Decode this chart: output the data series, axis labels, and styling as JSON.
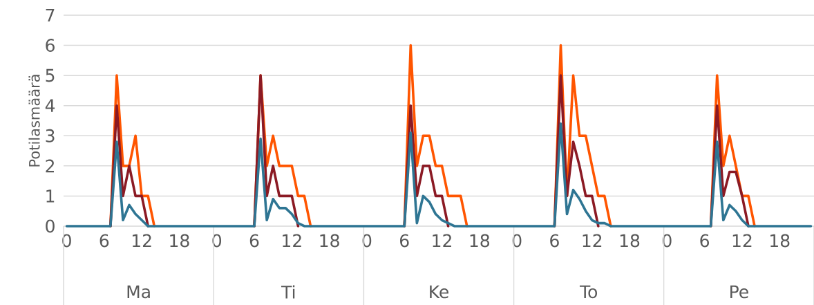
{
  "chart_data": {
    "type": "line",
    "ylabel": "Potilasmäärä",
    "categories": [
      "0",
      null,
      null,
      null,
      null,
      null,
      "6",
      null,
      null,
      null,
      null,
      null,
      "12",
      null,
      null,
      null,
      null,
      null,
      "18",
      null,
      null,
      null,
      null,
      null,
      "0",
      null,
      null,
      null,
      null,
      null,
      "6",
      null,
      null,
      null,
      null,
      null,
      "12",
      null,
      null,
      null,
      null,
      null,
      "18",
      null,
      null,
      null,
      null,
      null,
      "0",
      null,
      null,
      null,
      null,
      null,
      "6",
      null,
      null,
      null,
      null,
      null,
      "12",
      null,
      null,
      null,
      null,
      null,
      "18",
      null,
      null,
      null,
      null,
      null,
      "0",
      null,
      null,
      null,
      null,
      null,
      "6",
      null,
      null,
      null,
      null,
      null,
      "12",
      null,
      null,
      null,
      null,
      null,
      "18",
      null,
      null,
      null,
      null,
      null,
      "0",
      null,
      null,
      null,
      null,
      null,
      "6",
      null,
      null,
      null,
      null,
      null,
      "12",
      null,
      null,
      null,
      null,
      null,
      "18",
      null,
      null,
      null,
      null,
      null
    ],
    "annotations": [
      "Ma",
      "Ti",
      "Ke",
      "To",
      "Pe"
    ],
    "series": [
      {
        "color": "#ff5500",
        "values": [
          null,
          null,
          null,
          null,
          null,
          null,
          null,
          0,
          5,
          2,
          2,
          3,
          1,
          1,
          0,
          null,
          null,
          null,
          null,
          null,
          null,
          null,
          null,
          null,
          null,
          null,
          null,
          null,
          null,
          null,
          0,
          5,
          2,
          3,
          2,
          2,
          2,
          1,
          1,
          0,
          null,
          null,
          null,
          null,
          null,
          null,
          null,
          null,
          null,
          null,
          null,
          null,
          null,
          null,
          0,
          6,
          2,
          3,
          3,
          2,
          2,
          1,
          1,
          1,
          0,
          null,
          null,
          null,
          null,
          null,
          null,
          null,
          null,
          null,
          null,
          null,
          null,
          null,
          0,
          6,
          1,
          5,
          3,
          3,
          2,
          1,
          1,
          0,
          null,
          null,
          null,
          null,
          null,
          null,
          null,
          null,
          null,
          null,
          null,
          null,
          null,
          null,
          null,
          0,
          5,
          2,
          3,
          2,
          1,
          1,
          0,
          null,
          null,
          null,
          null,
          null,
          null,
          null,
          null,
          null
        ]
      },
      {
        "color": "#8b1a24",
        "values": [
          null,
          null,
          null,
          null,
          null,
          null,
          null,
          0,
          4,
          1,
          2,
          1,
          1,
          0,
          null,
          null,
          null,
          null,
          null,
          null,
          null,
          null,
          null,
          null,
          null,
          null,
          null,
          null,
          null,
          null,
          0,
          5,
          1,
          2,
          1,
          1,
          1,
          0,
          null,
          null,
          null,
          null,
          null,
          null,
          null,
          null,
          null,
          null,
          null,
          null,
          null,
          null,
          null,
          null,
          0,
          4,
          1,
          2,
          2,
          1,
          1,
          0,
          null,
          null,
          null,
          null,
          null,
          null,
          null,
          null,
          null,
          null,
          null,
          null,
          null,
          null,
          null,
          null,
          0,
          5,
          1,
          2.8,
          2,
          1,
          1,
          0,
          null,
          null,
          null,
          null,
          null,
          null,
          null,
          null,
          null,
          null,
          null,
          null,
          null,
          null,
          null,
          null,
          null,
          0,
          4,
          1,
          1.8,
          1.8,
          1,
          0,
          null,
          null,
          null,
          null,
          null,
          null,
          null,
          null,
          null,
          null
        ]
      },
      {
        "color": "#2e7593",
        "values": [
          0,
          0,
          0,
          0,
          0,
          0,
          0,
          0,
          2.8,
          0.2,
          0.7,
          0.4,
          0.2,
          0,
          0,
          0,
          0,
          0,
          0,
          0,
          0,
          0,
          0,
          0,
          0,
          0,
          0,
          0,
          0,
          0,
          0,
          2.9,
          0.2,
          0.9,
          0.6,
          0.6,
          0.4,
          0.1,
          0,
          0,
          0,
          0,
          0,
          0,
          0,
          0,
          0,
          0,
          0,
          0,
          0,
          0,
          0,
          0,
          0,
          3.1,
          0.1,
          1,
          0.8,
          0.4,
          0.2,
          0.1,
          0,
          0,
          0,
          0,
          0,
          0,
          0,
          0,
          0,
          0,
          0,
          0,
          0,
          0,
          0,
          0,
          0,
          3.4,
          0.4,
          1.2,
          0.9,
          0.5,
          0.2,
          0.1,
          0.1,
          0,
          0,
          0,
          0,
          0,
          0,
          0,
          0,
          0,
          0,
          0,
          0,
          0,
          0,
          0,
          0,
          0,
          2.8,
          0.2,
          0.7,
          0.5,
          0.2,
          0,
          0,
          0,
          0,
          0,
          0,
          0,
          0,
          0,
          0,
          0
        ]
      }
    ],
    "ylim": [
      0,
      7
    ],
    "yticks": [
      0,
      1,
      2,
      3,
      4,
      5,
      6,
      7
    ],
    "grid": "y",
    "marker": "none",
    "line_style": "solid"
  }
}
